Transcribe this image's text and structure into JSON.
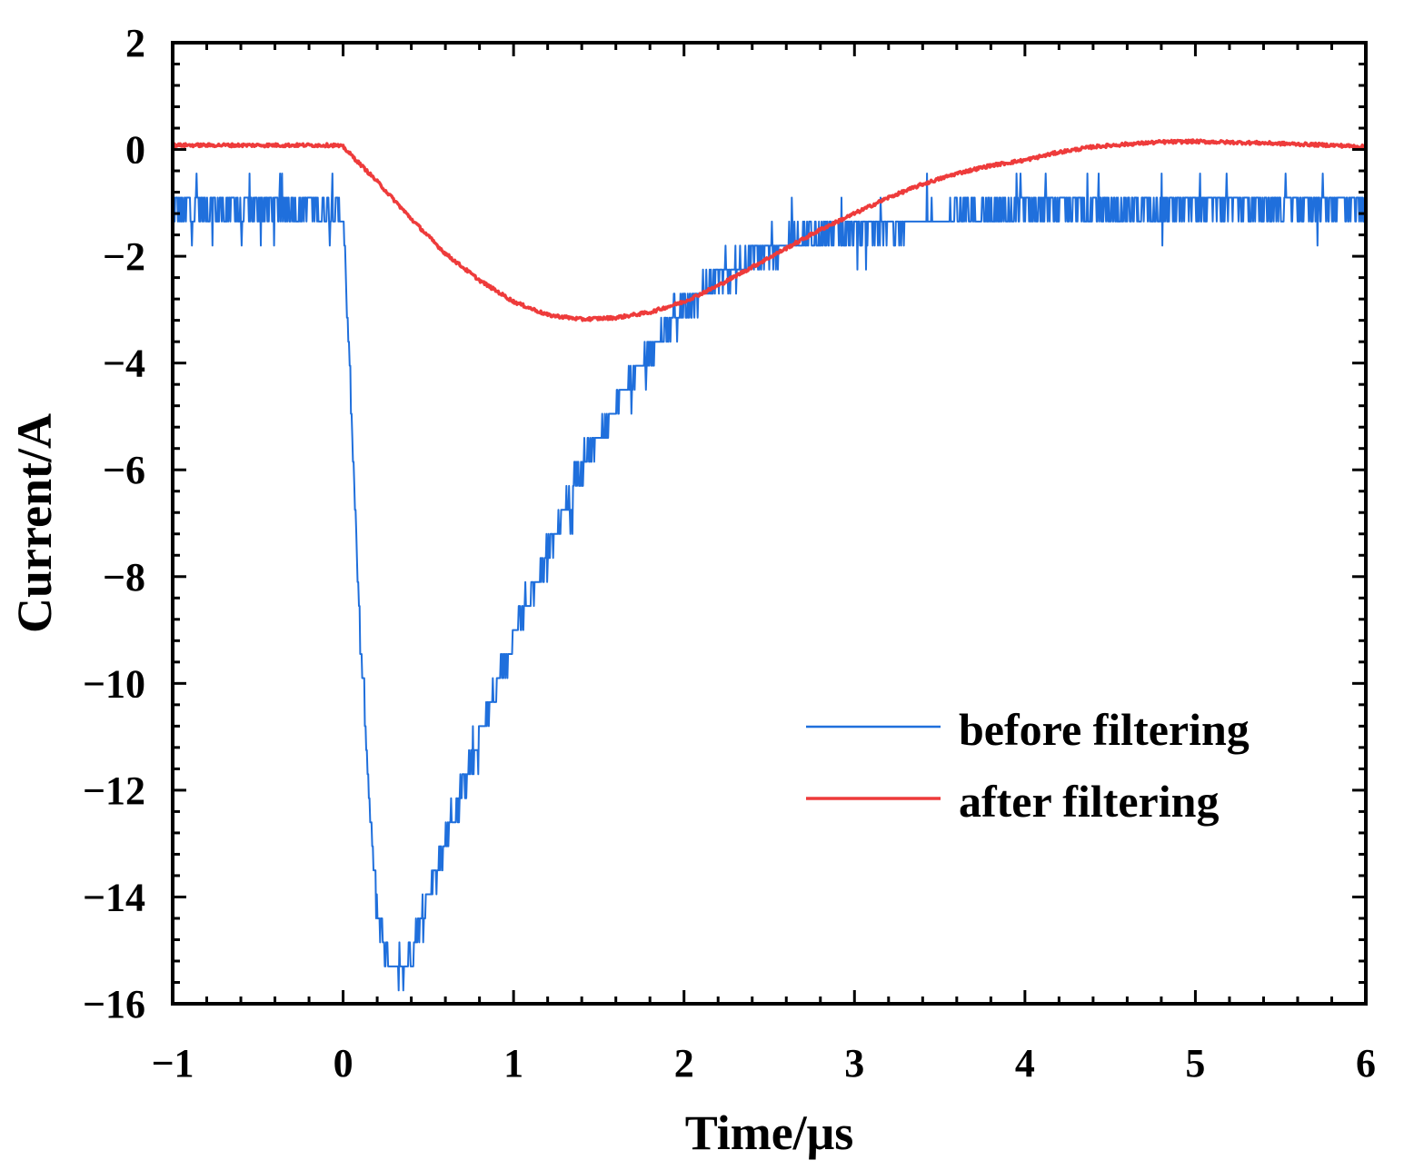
{
  "chart_data": {
    "type": "line",
    "title": "",
    "xlabel": "Time/μs",
    "ylabel": "Current/A",
    "xlim": [
      -1,
      6
    ],
    "ylim": [
      -16,
      2
    ],
    "xticks": [
      -1,
      0,
      1,
      2,
      3,
      4,
      5,
      6
    ],
    "yticks": [
      2,
      0,
      -2,
      -4,
      -6,
      -8,
      -10,
      -12,
      -14,
      -16
    ],
    "xtick_labels": [
      "−1",
      "0",
      "1",
      "2",
      "3",
      "4",
      "5",
      "6"
    ],
    "ytick_labels": [
      "2",
      "0",
      "−2",
      "−4",
      "−6",
      "−8",
      "−10",
      "−12",
      "−14",
      "−16"
    ],
    "grid": false,
    "legend_position": "lower-right",
    "series": [
      {
        "name": "before filtering",
        "color": "#1f6fdc",
        "noise_band": 0.45,
        "x": [
          -1,
          -0.02,
          0.0,
          0.05,
          0.1,
          0.15,
          0.2,
          0.25,
          0.3,
          0.35,
          0.4,
          0.5,
          0.6,
          0.7,
          0.8,
          1.0,
          1.2,
          1.4,
          1.6,
          1.8,
          2.0,
          2.2,
          2.4,
          2.6,
          2.8,
          3.0,
          3.5,
          4.0,
          4.5,
          5.0,
          6.0
        ],
        "y": [
          -1.1,
          -1.1,
          -1.3,
          -5.0,
          -9.0,
          -12.0,
          -14.3,
          -15.0,
          -15.3,
          -15.3,
          -15.0,
          -14.0,
          -13.0,
          -12.0,
          -11.0,
          -9.2,
          -7.5,
          -6.0,
          -4.8,
          -3.8,
          -3.0,
          -2.4,
          -2.0,
          -1.75,
          -1.6,
          -1.5,
          -1.3,
          -1.15,
          -1.1,
          -1.05,
          -1.0
        ]
      },
      {
        "name": "after filtering",
        "color": "#ee3b3b",
        "noise_band": 0.1,
        "x": [
          -1,
          -0.05,
          0.0,
          0.2,
          0.4,
          0.6,
          0.8,
          1.0,
          1.2,
          1.4,
          1.6,
          1.8,
          2.0,
          2.2,
          2.4,
          2.6,
          2.8,
          3.0,
          3.2,
          3.4,
          3.6,
          3.8,
          4.0,
          4.2,
          4.4,
          4.6,
          4.8,
          5.0,
          5.4,
          5.8,
          6.0
        ],
        "y": [
          0.08,
          0.08,
          0.05,
          -0.6,
          -1.3,
          -1.95,
          -2.45,
          -2.85,
          -3.1,
          -3.18,
          -3.15,
          -3.05,
          -2.85,
          -2.55,
          -2.2,
          -1.85,
          -1.5,
          -1.2,
          -0.9,
          -0.65,
          -0.45,
          -0.3,
          -0.2,
          -0.05,
          0.05,
          0.1,
          0.14,
          0.15,
          0.12,
          0.08,
          0.05
        ]
      }
    ]
  }
}
